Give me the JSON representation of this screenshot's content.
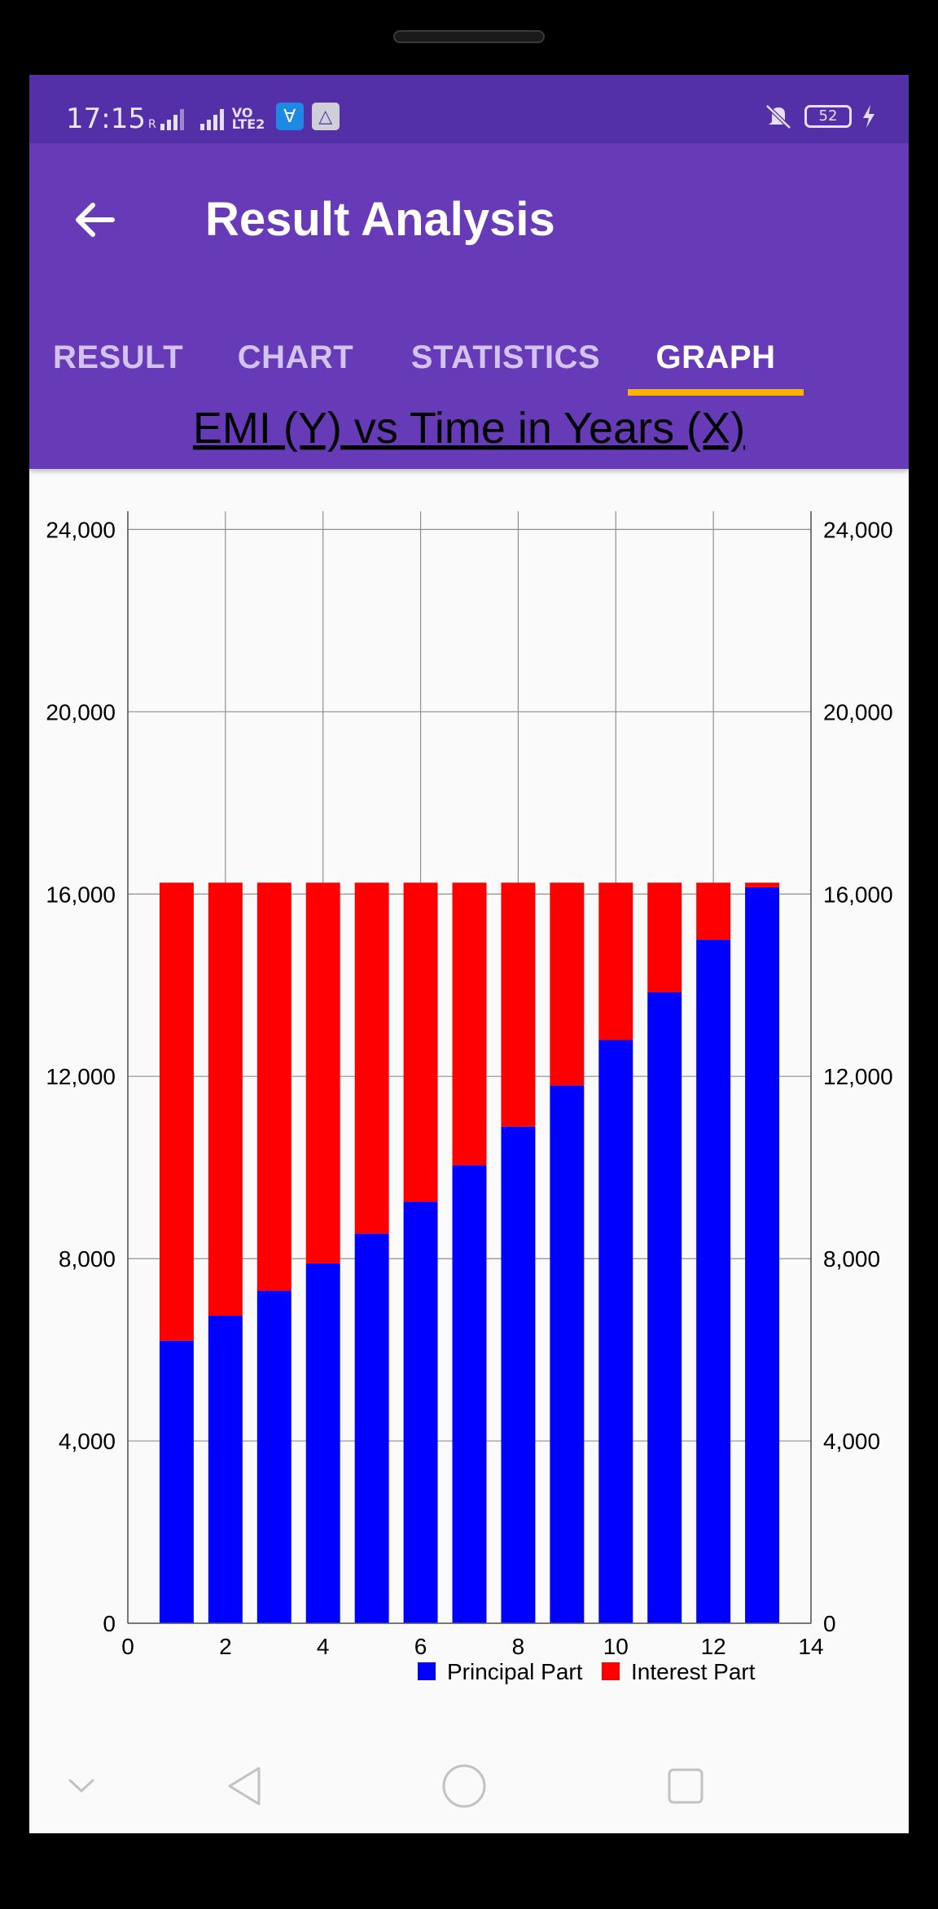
{
  "status_bar": {
    "time": "17:15",
    "network_label": "VoLTE",
    "battery_level": "52",
    "icons": [
      "signal-roaming-icon",
      "signal-icon",
      "volte-icon",
      "usb-icon",
      "drive-icon",
      "mute-icon",
      "battery-icon",
      "charging-icon"
    ]
  },
  "app_bar": {
    "title": "Result Analysis",
    "back_icon": "arrow-left-icon",
    "color": "#673ab7"
  },
  "tabs": [
    {
      "label": "RESULT",
      "active": false
    },
    {
      "label": "CHART",
      "active": false
    },
    {
      "label": "STATISTICS",
      "active": false
    },
    {
      "label": "GRAPH",
      "active": true
    }
  ],
  "chart_data": {
    "type": "bar",
    "stacked": true,
    "title": "EMI (Y) vs Time in Years (X)",
    "xlabel": "",
    "ylabel": "",
    "x": [
      1,
      2,
      3,
      4,
      5,
      6,
      7,
      8,
      9,
      10,
      11,
      12,
      13
    ],
    "series": [
      {
        "name": "Principal Part",
        "color": "#0000ff",
        "values": [
          6200,
          6750,
          7300,
          7900,
          8550,
          9250,
          10050,
          10900,
          11800,
          12800,
          13850,
          15000,
          16150
        ]
      },
      {
        "name": "Interest Part",
        "color": "#ff0000",
        "values": [
          10050,
          9500,
          8950,
          8350,
          7700,
          7000,
          6200,
          5350,
          4450,
          3450,
          2400,
          1250,
          100
        ]
      }
    ],
    "xlim": [
      0,
      14
    ],
    "ylim": [
      0,
      24400
    ],
    "x_ticks": [
      0,
      2,
      4,
      6,
      8,
      10,
      12,
      14
    ],
    "x_tick_labels": [
      "0",
      "2",
      "4",
      "6",
      "8",
      "10",
      "12",
      "14"
    ],
    "y_ticks": [
      0,
      4000,
      8000,
      12000,
      16000,
      20000,
      24000
    ],
    "y_tick_labels": [
      "0",
      "4,000",
      "8,000",
      "12,000",
      "16,000",
      "20,000",
      "24,000"
    ],
    "right_axis": true,
    "grid": true,
    "legend_position": "bottom-right"
  },
  "nav_bar": {
    "icons": [
      "hide-nav-icon",
      "back-triangle-icon",
      "home-circle-icon",
      "recents-square-icon"
    ]
  }
}
